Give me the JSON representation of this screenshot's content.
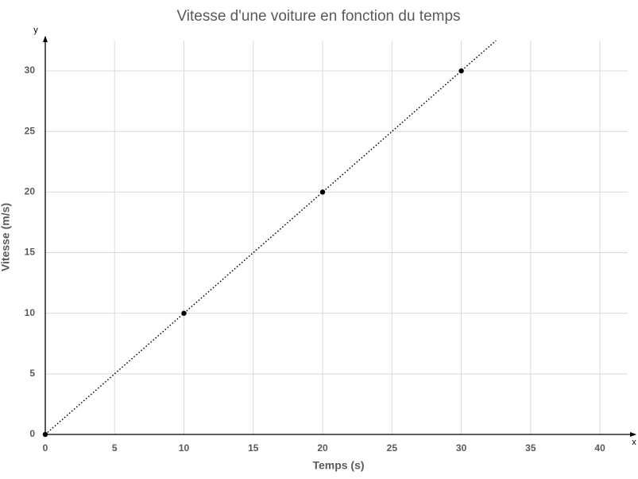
{
  "chart_data": {
    "type": "scatter",
    "title": "Vitesse d'une voiture en fonction du temps",
    "x_label": "Temps (s)",
    "y_label": "Vitesse (m/s)",
    "x_axis_name": "x",
    "y_axis_name": "y",
    "x": [
      0,
      10,
      20,
      30
    ],
    "values": [
      0,
      10,
      20,
      30
    ],
    "color": "#000000",
    "trendline": "linear",
    "xlim": [
      0,
      42.4
    ],
    "ylim": [
      0,
      32.5
    ],
    "xticks": [
      0,
      5,
      10,
      15,
      20,
      25,
      30,
      35,
      40
    ],
    "yticks": [
      0,
      5,
      10,
      15,
      20,
      25,
      30
    ],
    "grid": true
  }
}
